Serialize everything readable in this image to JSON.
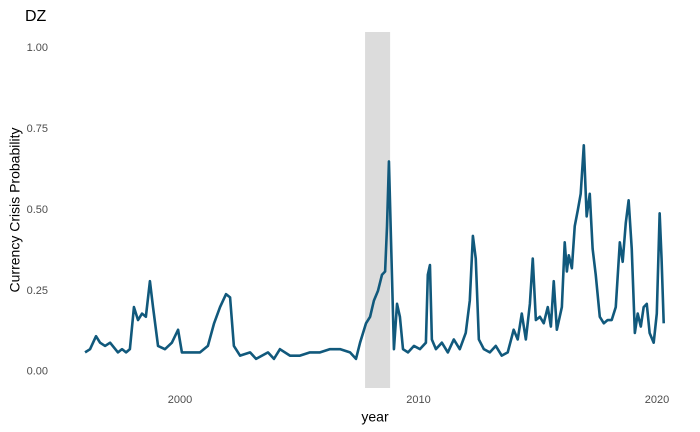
{
  "chart_data": {
    "type": "line",
    "title": "DZ",
    "x_label": "year",
    "y_label": "Currency Crisis Probability",
    "xlim": [
      1994.97,
      2020.46
    ],
    "ylim": [
      -0.05,
      1.05
    ],
    "xticks": [
      2000,
      2010,
      2020
    ],
    "yticks": [
      {
        "value": 0,
        "label": "0.00"
      },
      {
        "value": 0.25,
        "label": "0.25"
      },
      {
        "value": 0.5,
        "label": "0.50"
      },
      {
        "value": 0.75,
        "label": "0.75"
      },
      {
        "value": 1,
        "label": "1.00"
      }
    ],
    "grid": false,
    "shaded_period": {
      "start": 2007.76,
      "end": 2008.81,
      "color": "#dcdcdc"
    },
    "x": [
      1996.02,
      1996.23,
      1996.48,
      1996.65,
      1996.86,
      1997.07,
      1997.4,
      1997.57,
      1997.74,
      1997.9,
      1998.07,
      1998.24,
      1998.41,
      1998.57,
      1998.74,
      1998.87,
      1999.08,
      1999.37,
      1999.66,
      1999.92,
      2000.08,
      2000.42,
      2000.84,
      2001.17,
      2001.43,
      2001.68,
      2001.93,
      2002.1,
      2002.26,
      2002.52,
      2002.94,
      2003.19,
      2003.44,
      2003.69,
      2003.94,
      2004.19,
      2004.61,
      2005.03,
      2005.45,
      2005.87,
      2006.29,
      2006.71,
      2007.13,
      2007.38,
      2007.55,
      2007.8,
      2007.97,
      2008.13,
      2008.3,
      2008.47,
      2008.6,
      2008.68,
      2008.76,
      2008.85,
      2008.97,
      2009.1,
      2009.22,
      2009.35,
      2009.56,
      2009.81,
      2010.06,
      2010.31,
      2010.39,
      2010.48,
      2010.56,
      2010.73,
      2010.98,
      2011.23,
      2011.48,
      2011.73,
      2011.98,
      2012.15,
      2012.28,
      2012.4,
      2012.53,
      2012.74,
      2012.99,
      2013.24,
      2013.49,
      2013.74,
      2013.99,
      2014.16,
      2014.33,
      2014.5,
      2014.67,
      2014.79,
      2014.92,
      2015.09,
      2015.25,
      2015.42,
      2015.55,
      2015.67,
      2015.8,
      2016.01,
      2016.13,
      2016.22,
      2016.3,
      2016.43,
      2016.55,
      2016.68,
      2016.8,
      2016.93,
      2017.05,
      2017.18,
      2017.3,
      2017.43,
      2017.6,
      2017.77,
      2017.93,
      2018.1,
      2018.27,
      2018.44,
      2018.56,
      2018.69,
      2018.81,
      2018.94,
      2019.07,
      2019.19,
      2019.32,
      2019.44,
      2019.57,
      2019.69,
      2019.86,
      2019.99,
      2020.11,
      2020.19,
      2020.28
    ],
    "series": [
      {
        "color": "#11597c",
        "values": [
          0.06,
          0.07,
          0.11,
          0.09,
          0.08,
          0.09,
          0.06,
          0.07,
          0.06,
          0.07,
          0.2,
          0.16,
          0.18,
          0.17,
          0.28,
          0.2,
          0.08,
          0.07,
          0.09,
          0.13,
          0.06,
          0.06,
          0.06,
          0.08,
          0.15,
          0.2,
          0.24,
          0.23,
          0.08,
          0.05,
          0.06,
          0.04,
          0.05,
          0.06,
          0.04,
          0.07,
          0.05,
          0.05,
          0.06,
          0.06,
          0.07,
          0.07,
          0.06,
          0.04,
          0.09,
          0.15,
          0.17,
          0.22,
          0.25,
          0.3,
          0.31,
          0.45,
          0.65,
          0.4,
          0.07,
          0.21,
          0.17,
          0.07,
          0.06,
          0.08,
          0.07,
          0.09,
          0.3,
          0.33,
          0.1,
          0.07,
          0.09,
          0.06,
          0.1,
          0.07,
          0.12,
          0.22,
          0.42,
          0.35,
          0.1,
          0.07,
          0.06,
          0.08,
          0.05,
          0.06,
          0.13,
          0.1,
          0.18,
          0.1,
          0.21,
          0.35,
          0.16,
          0.17,
          0.15,
          0.2,
          0.14,
          0.28,
          0.13,
          0.2,
          0.4,
          0.31,
          0.36,
          0.32,
          0.45,
          0.5,
          0.55,
          0.7,
          0.48,
          0.55,
          0.38,
          0.3,
          0.17,
          0.15,
          0.16,
          0.16,
          0.2,
          0.4,
          0.34,
          0.46,
          0.53,
          0.38,
          0.12,
          0.18,
          0.14,
          0.2,
          0.21,
          0.12,
          0.09,
          0.18,
          0.49,
          0.35,
          0.15
        ]
      }
    ]
  }
}
